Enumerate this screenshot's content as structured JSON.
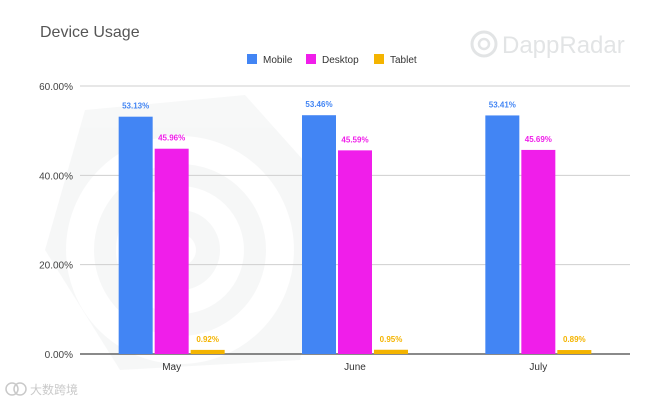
{
  "watermark": {
    "brand_text": "DappRadar",
    "corner_text": "大数跨境",
    "icon": "radar-logo-icon"
  },
  "chart_data": {
    "type": "bar",
    "title": "Device Usage",
    "categories": [
      "May",
      "June",
      "July"
    ],
    "series": [
      {
        "name": "Mobile",
        "color": "#4285F4",
        "values": [
          53.13,
          53.46,
          53.41
        ],
        "labels": [
          "53.13%",
          "53.46%",
          "53.41%"
        ]
      },
      {
        "name": "Desktop",
        "color": "#F01EEA",
        "values": [
          45.96,
          45.59,
          45.69
        ],
        "labels": [
          "45.96%",
          "45.59%",
          "45.69%"
        ]
      },
      {
        "name": "Tablet",
        "color": "#F4B400",
        "values": [
          0.92,
          0.95,
          0.89
        ],
        "labels": [
          "0.92%",
          "0.95%",
          "0.89%"
        ]
      }
    ],
    "ylim": [
      0,
      60
    ],
    "yticks": [
      {
        "value": 0,
        "label": "0.00%"
      },
      {
        "value": 20,
        "label": "20.00%"
      },
      {
        "value": 40,
        "label": "40.00%"
      },
      {
        "value": 60,
        "label": "60.00%"
      }
    ],
    "grid": true,
    "legend_position": "top-center"
  }
}
